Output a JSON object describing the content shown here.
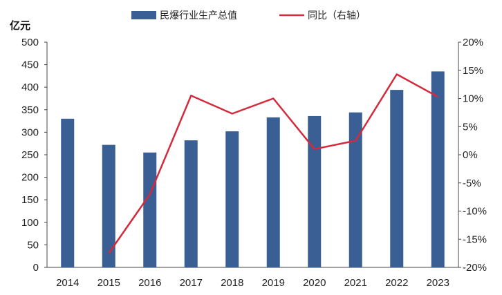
{
  "chart_data": {
    "type": "bar",
    "categories": [
      "2014",
      "2015",
      "2016",
      "2017",
      "2018",
      "2019",
      "2020",
      "2021",
      "2022",
      "2023"
    ],
    "series": [
      {
        "name": "民爆行业生产总值",
        "type": "bar",
        "axis": "left",
        "color": "#3a5f95",
        "values": [
          330,
          272,
          255,
          282,
          302,
          333,
          336,
          344,
          394,
          435
        ]
      },
      {
        "name": "同比（右轴）",
        "type": "line",
        "axis": "right",
        "color": "#d42a3c",
        "values": [
          null,
          -17.5,
          -7,
          10.5,
          7.3,
          10,
          1,
          2.5,
          14.3,
          10.3
        ]
      }
    ],
    "ylabel": "亿元",
    "ylim": [
      0,
      500
    ],
    "yticks": [
      "0",
      "50",
      "100",
      "150",
      "200",
      "250",
      "300",
      "350",
      "400",
      "450",
      "500"
    ],
    "y2lim": [
      -20,
      20
    ],
    "y2ticks": [
      "-20%",
      "-15%",
      "-10%",
      "-5%",
      "0%",
      "5%",
      "10%",
      "15%",
      "20%"
    ],
    "legend_position": "top"
  }
}
